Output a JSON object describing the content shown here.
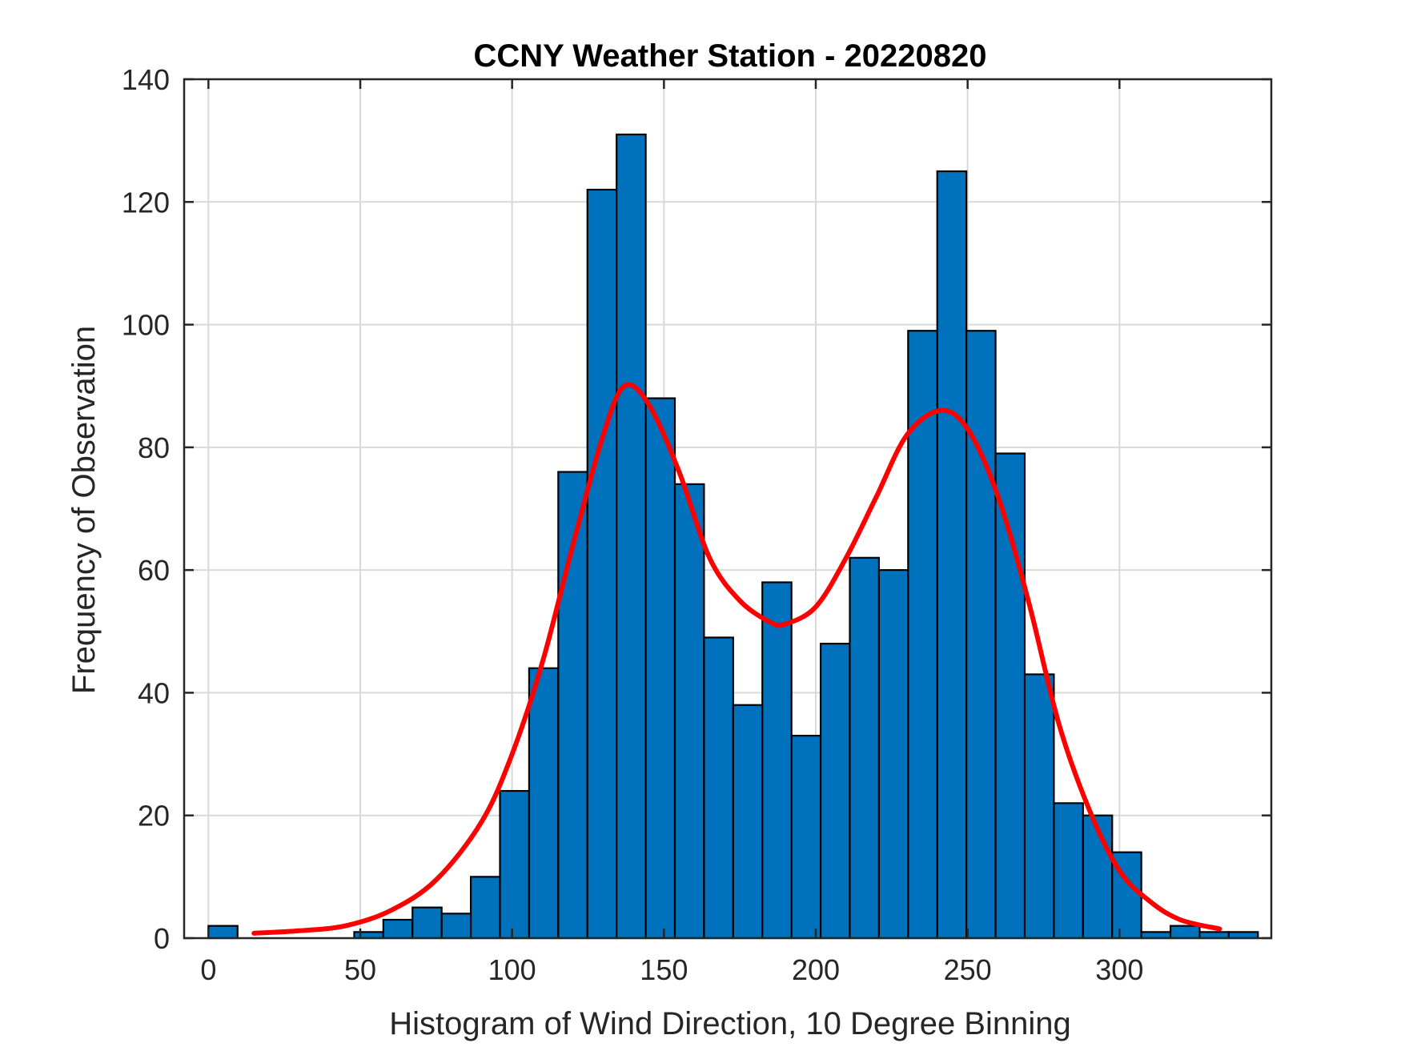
{
  "chart_data": {
    "type": "bar",
    "title": "CCNY Weather Station - 20220820",
    "xlabel": "Histogram of Wind Direction, 10 Degree Binning",
    "ylabel": "Frequency of Observation",
    "xlim": [
      -8,
      350
    ],
    "ylim": [
      0,
      140
    ],
    "xticks": [
      0,
      50,
      100,
      150,
      200,
      250,
      300
    ],
    "yticks": [
      0,
      20,
      40,
      60,
      80,
      100,
      120,
      140
    ],
    "xtick_labels": [
      "0",
      "50",
      "100",
      "150",
      "200",
      "250",
      "300"
    ],
    "ytick_labels": [
      "0",
      "20",
      "40",
      "60",
      "80",
      "100",
      "120",
      "140"
    ],
    "grid": true,
    "bin_width": 9.6,
    "bin_start": 0,
    "values": [
      2,
      0,
      0,
      0,
      0,
      1,
      3,
      5,
      4,
      10,
      24,
      44,
      76,
      122,
      131,
      88,
      74,
      49,
      38,
      58,
      33,
      48,
      62,
      60,
      99,
      125,
      99,
      79,
      43,
      22,
      20,
      14,
      1,
      2,
      1,
      1
    ],
    "bar_color": "#0072BD",
    "bar_edge_color": "#000000",
    "fit_curve": {
      "color": "#FF0000",
      "x": [
        15,
        30,
        45,
        60,
        75,
        90,
        100,
        110,
        120,
        130,
        137,
        145,
        155,
        165,
        175,
        185,
        190,
        200,
        210,
        220,
        230,
        241,
        250,
        260,
        270,
        280,
        290,
        300,
        310,
        320,
        333
      ],
      "y": [
        0.8,
        1.2,
        2,
        4.5,
        9.5,
        19,
        30,
        45,
        64,
        82,
        90,
        87,
        76,
        62,
        55,
        51.5,
        51.2,
        54,
        62,
        72,
        82,
        86,
        83,
        72,
        55,
        35,
        21,
        11,
        6,
        3,
        1.5
      ]
    }
  }
}
